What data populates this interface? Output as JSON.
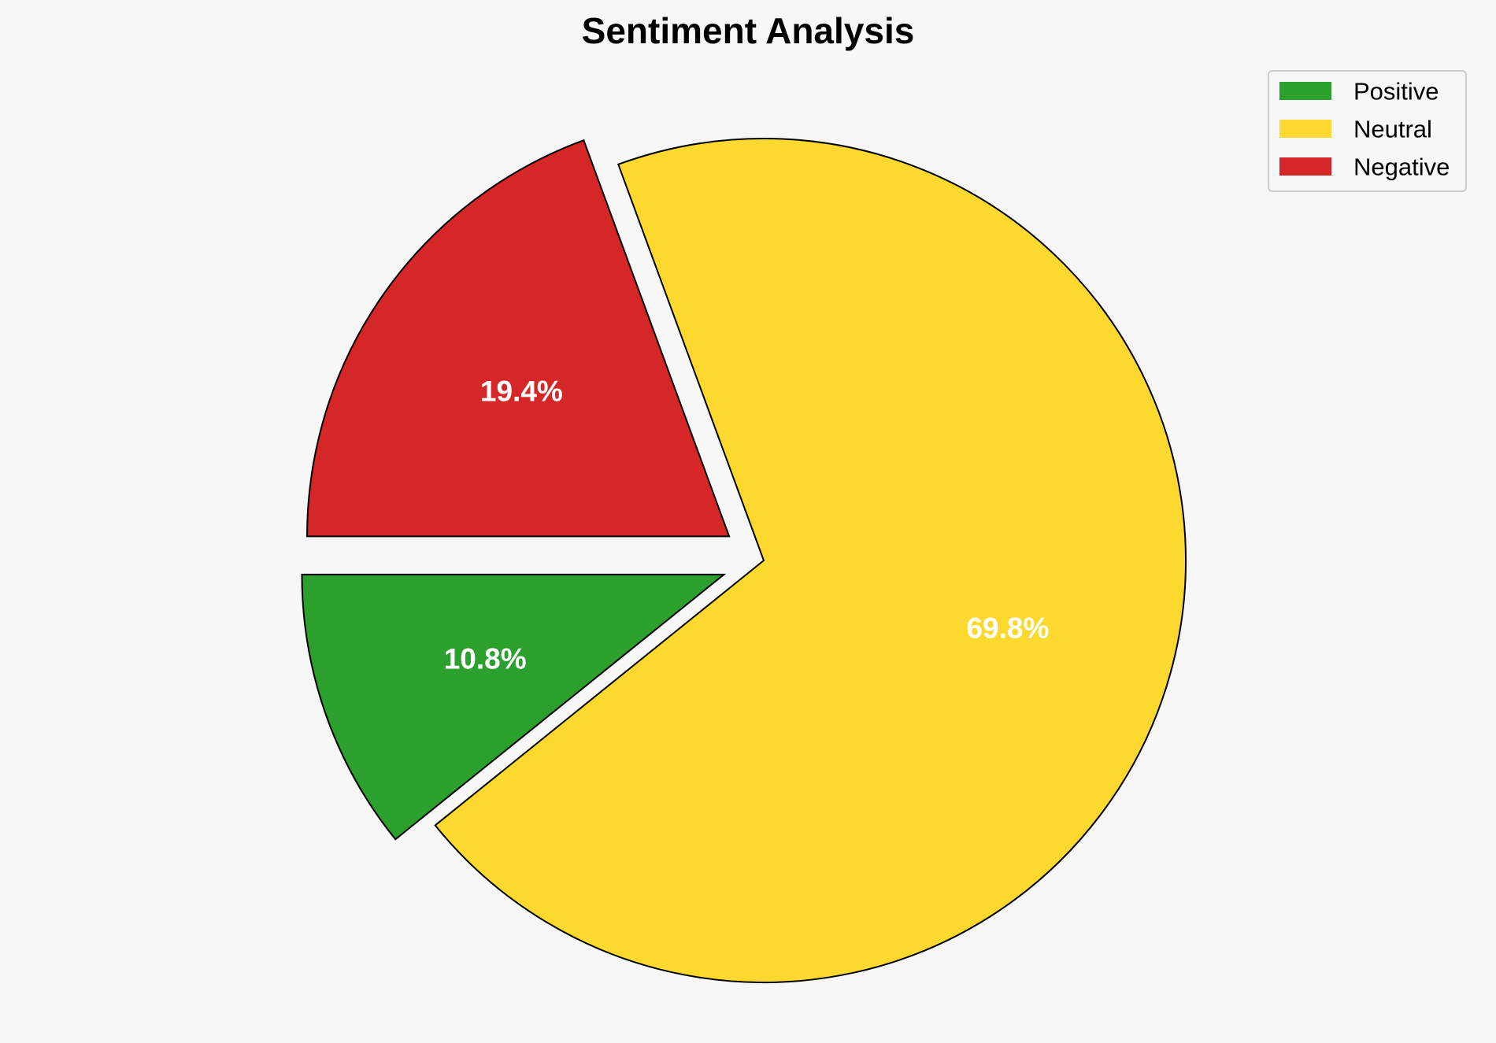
{
  "chart_data": {
    "type": "pie",
    "title": "Sentiment Analysis",
    "slices": [
      {
        "label": "Positive",
        "value": 10.8,
        "pct_label": "10.8%",
        "color": "#2ca02c",
        "exploded": true
      },
      {
        "label": "Neutral",
        "value": 69.8,
        "pct_label": "69.8%",
        "color": "#fdd930",
        "exploded": false
      },
      {
        "label": "Negative",
        "value": 19.4,
        "pct_label": "19.4%",
        "color": "#d62728",
        "exploded": true
      }
    ],
    "legend": {
      "placement": "top-right",
      "entries": [
        "Positive",
        "Neutral",
        "Negative"
      ]
    }
  }
}
